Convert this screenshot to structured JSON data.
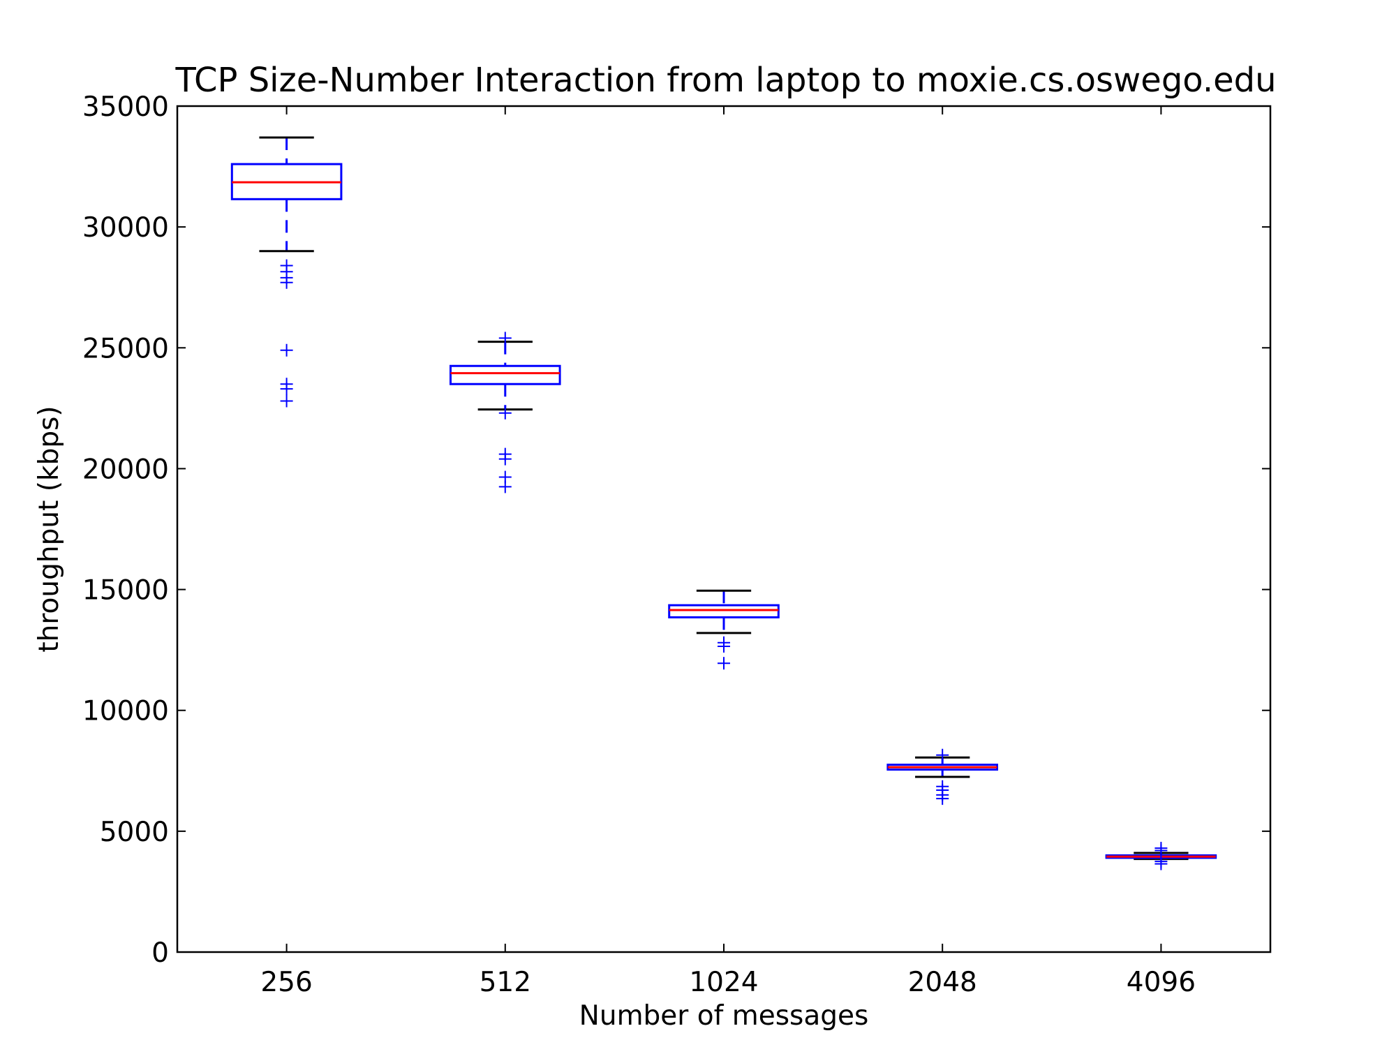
{
  "chart_data": {
    "type": "box",
    "title": "TCP Size-Number Interaction from laptop to moxie.cs.oswego.edu",
    "xlabel": "Number of messages",
    "ylabel": "throughput (kbps)",
    "ylim": [
      0,
      35000
    ],
    "yticks": [
      0,
      5000,
      10000,
      15000,
      20000,
      25000,
      30000,
      35000
    ],
    "ytick_labels": [
      "0",
      "5000",
      "10000",
      "15000",
      "20000",
      "25000",
      "30000",
      "35000"
    ],
    "categories": [
      "256",
      "512",
      "1024",
      "2048",
      "4096"
    ],
    "boxes": [
      {
        "category": "256",
        "whisker_low": 29000,
        "q1": 31150,
        "median": 31850,
        "q3": 32600,
        "whisker_high": 33700,
        "outliers": [
          28400,
          28150,
          27900,
          27700,
          24900,
          23500,
          23300,
          22800
        ]
      },
      {
        "category": "512",
        "whisker_low": 22450,
        "q1": 23500,
        "median": 23950,
        "q3": 24250,
        "whisker_high": 25250,
        "outliers": [
          25400,
          22300,
          20600,
          20400,
          19650,
          19250
        ]
      },
      {
        "category": "1024",
        "whisker_low": 13200,
        "q1": 13850,
        "median": 14150,
        "q3": 14350,
        "whisker_high": 14950,
        "outliers": [
          12800,
          12650,
          11950
        ]
      },
      {
        "category": "2048",
        "whisker_low": 7250,
        "q1": 7550,
        "median": 7650,
        "q3": 7750,
        "whisker_high": 8050,
        "outliers": [
          8150,
          6850,
          6700,
          6500,
          6350
        ]
      },
      {
        "category": "4096",
        "whisker_low": 3850,
        "q1": 3900,
        "median": 3950,
        "q3": 4000,
        "whisker_high": 4100,
        "outliers": [
          4300,
          4200,
          3750,
          3650
        ]
      }
    ],
    "grid": false,
    "legend": "none",
    "colors": {
      "box": "#0000ff",
      "median": "#ff0000",
      "whisker_cap": "#000000",
      "outlier": "#0000ff",
      "axes": "#000000"
    }
  }
}
